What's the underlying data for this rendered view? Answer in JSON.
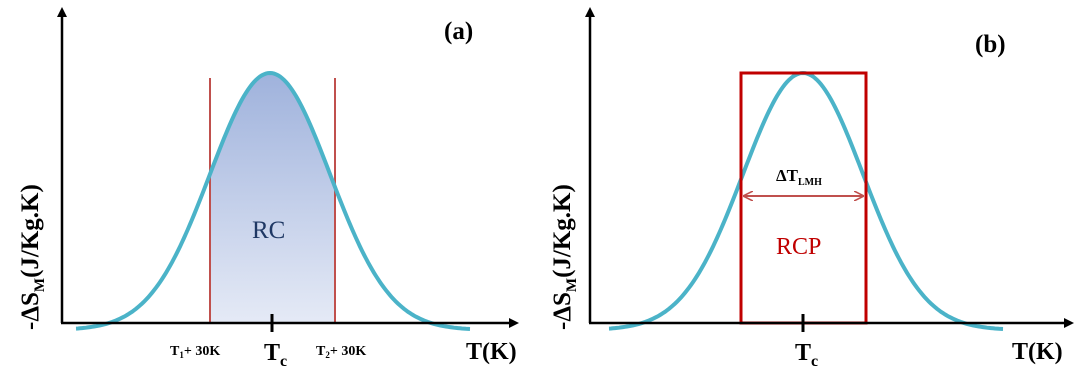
{
  "colors": {
    "curve": "#4bb3c8",
    "vertical_lines": "#c0504d",
    "rect": "#c00000",
    "fill_top": "#9fb2dc",
    "fill_bottom": "#e3e9f6",
    "axis": "#000000",
    "rcp_text": "#c00000"
  },
  "panel_a": {
    "label": "(a)",
    "y_axis_label": {
      "main": "-ΔS",
      "sub": "M",
      "rest": "(J/Kg.K)"
    },
    "x_axis_label": "T(K)",
    "region_label": "RC",
    "tick_left": {
      "main": "T",
      "sub": "1",
      "rest": "+ 30K"
    },
    "tick_right": {
      "main": "T",
      "sub": "2",
      "rest": "+ 30K"
    },
    "tick_center": {
      "main": "T",
      "sub": "c"
    }
  },
  "panel_b": {
    "label": "(b)",
    "y_axis_label": {
      "main": "-ΔS",
      "sub": "M",
      "rest": "(J/Kg.K)"
    },
    "x_axis_label": "T(K)",
    "region_label": "RCP",
    "fwhm_label": {
      "main": "ΔT",
      "sub": "LMH"
    },
    "tick_center": {
      "main": "T",
      "sub": "c"
    }
  }
}
